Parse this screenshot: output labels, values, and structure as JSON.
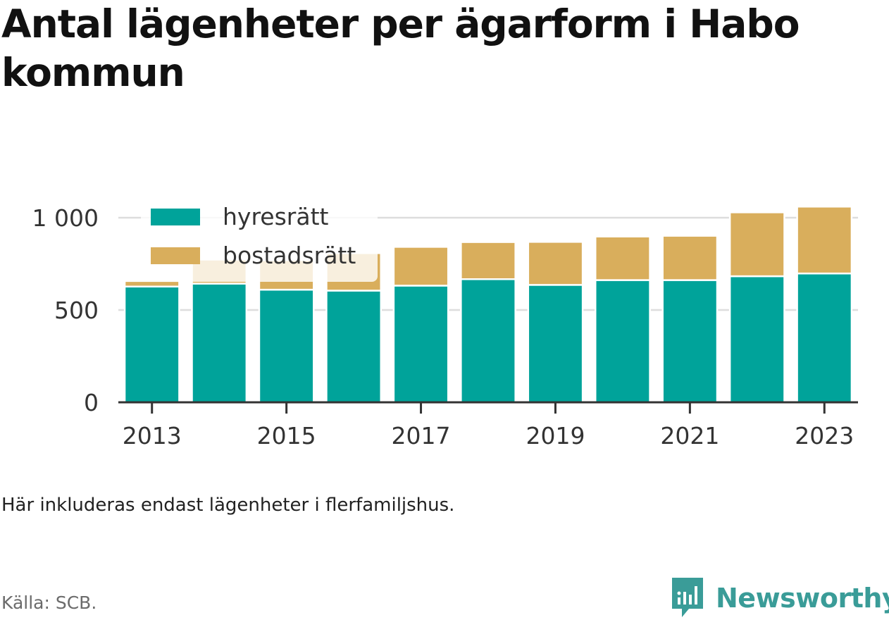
{
  "title": "Antal lägenheter per ägarform i Habo kommun",
  "note": "Här inkluderas endast lägenheter i flerfamiljshus.",
  "source": "Källa: SCB.",
  "brand": {
    "name": "Newsworthy",
    "icon": "newsworthy-logo-icon"
  },
  "colors": {
    "hyresratt": "#00a39a",
    "bostadsratt": "#d9ae5c",
    "axis": "#333333",
    "grid": "#dddddd"
  },
  "chart_data": {
    "type": "bar",
    "stacked": true,
    "title": "Antal lägenheter per ägarform i Habo kommun",
    "xlabel": "",
    "ylabel": "",
    "categories": [
      "2013",
      "2014",
      "2015",
      "2016",
      "2017",
      "2018",
      "2019",
      "2020",
      "2021",
      "2022",
      "2023"
    ],
    "x_tick_labels": [
      "2013",
      "2015",
      "2017",
      "2019",
      "2021",
      "2023"
    ],
    "y_ticks": [
      0,
      500,
      1000
    ],
    "y_tick_labels": [
      "0",
      "500",
      "1 000"
    ],
    "ylim": [
      0,
      1150
    ],
    "grid": true,
    "legend_position": "top-left",
    "series": [
      {
        "name": "hyresrätt",
        "color": "#00a39a",
        "values": [
          627,
          643,
          610,
          605,
          632,
          667,
          636,
          662,
          662,
          683,
          698
        ]
      },
      {
        "name": "bostadsrätt",
        "color": "#d9ae5c",
        "values": [
          30,
          130,
          160,
          203,
          210,
          201,
          233,
          236,
          240,
          346,
          362
        ]
      }
    ]
  }
}
